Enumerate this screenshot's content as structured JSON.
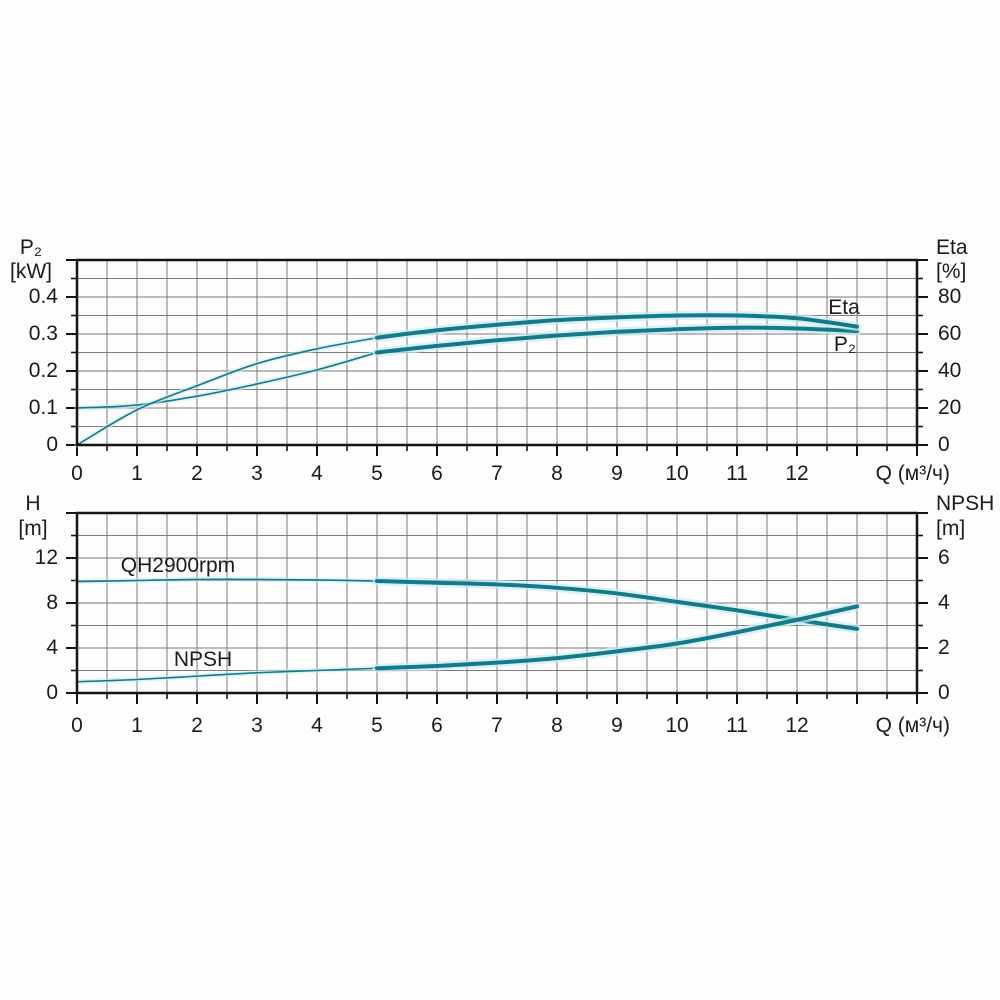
{
  "figure": {
    "background": "#fdfdfd",
    "description": "Pump performance curves"
  },
  "colors": {
    "curve": "#15798a",
    "curve_glow": "#c7ebf2",
    "grid": "#7c7c7c",
    "axis": "#141414",
    "text": "#1b1b1b"
  },
  "chart_data": [
    {
      "name": "power_and_efficiency",
      "type": "line",
      "title": "",
      "x_axis": {
        "title": "Q (м³/ч)",
        "min": 0,
        "max": 14,
        "grid_step": 0.5,
        "minor_tick_step": 0.5,
        "major_tick_step": 1,
        "tick_values": [
          0,
          1,
          2,
          3,
          4,
          5,
          6,
          7,
          8,
          9,
          10,
          11,
          12
        ],
        "tick_labels": [
          "0",
          "1",
          "2",
          "3",
          "4",
          "5",
          "6",
          "7",
          "8",
          "9",
          "10",
          "11",
          "12"
        ]
      },
      "y_left": {
        "title": "P₂",
        "unit": "[kW]",
        "min": 0,
        "max": 0.5,
        "grid_step": 0.05,
        "minor_tick_step": 0.05,
        "major_tick_step": 0.1,
        "tick_values": [
          0,
          0.1,
          0.2,
          0.3,
          0.4
        ],
        "tick_labels": [
          "0",
          "0.1",
          "0.2",
          "0.3",
          "0.4"
        ]
      },
      "y_right": {
        "title": "Eta",
        "unit": "[%]",
        "min": 0,
        "max": 100,
        "minor_tick_step": 10,
        "major_tick_step": 20,
        "tick_values": [
          0,
          20,
          40,
          60,
          80
        ],
        "tick_labels": [
          "0",
          "20",
          "40",
          "60",
          "80"
        ]
      },
      "series": [
        {
          "name": "P2",
          "label": "P₂",
          "axis": "left",
          "thick_from": 5,
          "x": [
            0,
            1,
            2,
            3,
            4,
            5,
            6,
            7,
            8,
            9,
            10,
            11,
            12,
            13
          ],
          "y": [
            0.1,
            0.108,
            0.132,
            0.165,
            0.203,
            0.25,
            0.268,
            0.283,
            0.296,
            0.306,
            0.313,
            0.317,
            0.315,
            0.308
          ]
        },
        {
          "name": "Eta",
          "label": "Eta",
          "axis": "right",
          "thick_from": 5,
          "x": [
            0,
            1,
            2,
            3,
            4,
            5,
            6,
            7,
            8,
            9,
            10,
            11,
            12,
            13
          ],
          "y": [
            0,
            19,
            32,
            44,
            52,
            58,
            62,
            65,
            67.5,
            69,
            70,
            70,
            68.5,
            64
          ]
        }
      ]
    },
    {
      "name": "head_and_npsh",
      "type": "line",
      "title": "",
      "x_axis": {
        "title": "Q (м³/ч)",
        "min": 0,
        "max": 14,
        "grid_step": 0.5,
        "minor_tick_step": 0.5,
        "major_tick_step": 1,
        "tick_values": [
          0,
          1,
          2,
          3,
          4,
          5,
          6,
          7,
          8,
          9,
          10,
          11,
          12
        ],
        "tick_labels": [
          "0",
          "1",
          "2",
          "3",
          "4",
          "5",
          "6",
          "7",
          "8",
          "9",
          "10",
          "11",
          "12"
        ]
      },
      "y_left": {
        "title": "H",
        "unit": "[m]",
        "min": 0,
        "max": 16,
        "grid_step": 2,
        "minor_tick_step": 2,
        "major_tick_step": 4,
        "tick_values": [
          0,
          4,
          8,
          12
        ],
        "tick_labels": [
          "0",
          "4",
          "8",
          "12"
        ]
      },
      "y_right": {
        "title": "NPSH",
        "unit": "[m]",
        "min": 0,
        "max": 8,
        "minor_tick_step": 1,
        "major_tick_step": 2,
        "tick_values": [
          0,
          2,
          4,
          6
        ],
        "tick_labels": [
          "0",
          "2",
          "4",
          "6"
        ]
      },
      "series": [
        {
          "name": "QH2900rpm",
          "label": "QH2900rpm",
          "axis": "left",
          "thick_from": 5,
          "x": [
            0,
            1,
            2,
            3,
            4,
            5,
            6,
            7,
            8,
            9,
            10,
            11,
            12,
            13
          ],
          "y": [
            9.9,
            10.0,
            10.1,
            10.1,
            10.05,
            9.95,
            9.8,
            9.65,
            9.35,
            8.85,
            8.1,
            7.35,
            6.5,
            5.7
          ]
        },
        {
          "name": "NPSH",
          "label": "NPSH",
          "axis": "right",
          "thick_from": 5,
          "x": [
            0,
            1,
            2,
            3,
            4,
            5,
            6,
            7,
            8,
            9,
            10,
            11,
            12,
            13
          ],
          "y": [
            0.5,
            0.6,
            0.75,
            0.9,
            1.0,
            1.1,
            1.2,
            1.35,
            1.55,
            1.85,
            2.2,
            2.7,
            3.25,
            3.85
          ]
        }
      ]
    }
  ]
}
